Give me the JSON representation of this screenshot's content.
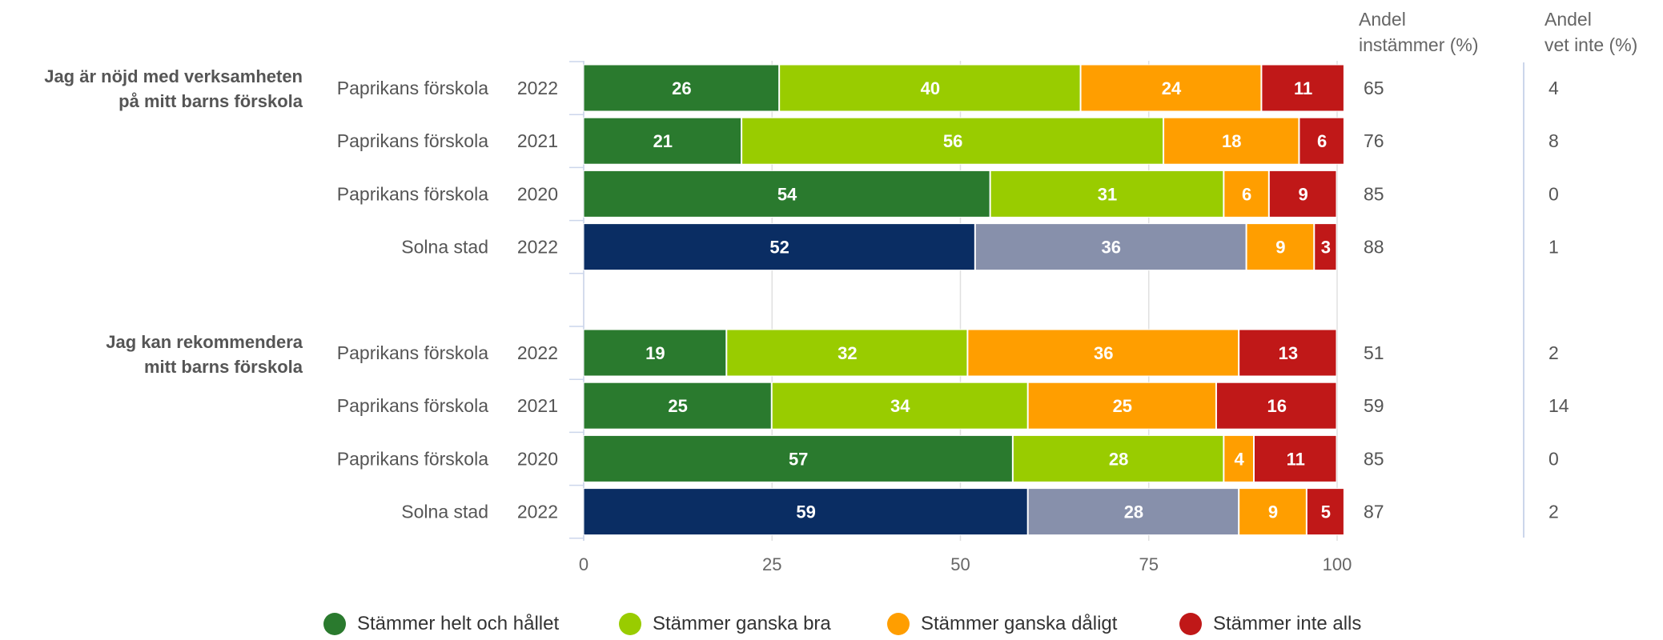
{
  "chart_data": {
    "type": "bar",
    "orientation": "horizontal",
    "stacked": true,
    "xlim": [
      0,
      100
    ],
    "x_ticks": [
      "0",
      "25",
      "50",
      "75",
      "100"
    ],
    "grid": true,
    "legend_position": "bottom",
    "column_headers": [
      {
        "line1": "Andel",
        "line2": "instämmer (%)"
      },
      {
        "line1": "Andel",
        "line2": "vet inte (%)"
      }
    ],
    "series": [
      {
        "name": "Stämmer helt och hållet",
        "color": "#2a7a2e",
        "alt_color": "#0a2d63"
      },
      {
        "name": "Stämmer ganska bra",
        "color": "#99cc00",
        "alt_color": "#8790ab"
      },
      {
        "name": "Stämmer ganska dåligt",
        "color": "#ff9e00",
        "alt_color": "#ff9e00"
      },
      {
        "name": "Stämmer inte alls",
        "color": "#c01818",
        "alt_color": "#c01818"
      }
    ],
    "groups": [
      {
        "question": "Jag är nöjd med verksamheten på mitt barns förskola",
        "question_lines": [
          "Jag är nöjd med verksamheten",
          "på mitt barns förskola"
        ],
        "rows": [
          {
            "unit": "Paprikans förskola",
            "year": "2022",
            "values": [
              26,
              40,
              24,
              11
            ],
            "agree": "65",
            "dont_know": "4",
            "benchmark": false
          },
          {
            "unit": "Paprikans förskola",
            "year": "2021",
            "values": [
              21,
              56,
              18,
              6
            ],
            "agree": "76",
            "dont_know": "8",
            "benchmark": false
          },
          {
            "unit": "Paprikans förskola",
            "year": "2020",
            "values": [
              54,
              31,
              6,
              9
            ],
            "agree": "85",
            "dont_know": "0",
            "benchmark": false
          },
          {
            "unit": "Solna stad",
            "year": "2022",
            "values": [
              52,
              36,
              9,
              3
            ],
            "agree": "88",
            "dont_know": "1",
            "benchmark": true
          }
        ]
      },
      {
        "question": "Jag kan rekommendera mitt barns förskola",
        "question_lines": [
          "Jag kan rekommendera",
          "mitt barns förskola"
        ],
        "rows": [
          {
            "unit": "Paprikans förskola",
            "year": "2022",
            "values": [
              19,
              32,
              36,
              13
            ],
            "agree": "51",
            "dont_know": "2",
            "benchmark": false
          },
          {
            "unit": "Paprikans förskola",
            "year": "2021",
            "values": [
              25,
              34,
              25,
              16
            ],
            "agree": "59",
            "dont_know": "14",
            "benchmark": false
          },
          {
            "unit": "Paprikans förskola",
            "year": "2020",
            "values": [
              57,
              28,
              4,
              11
            ],
            "agree": "85",
            "dont_know": "0",
            "benchmark": false
          },
          {
            "unit": "Solna stad",
            "year": "2022",
            "values": [
              59,
              28,
              9,
              5
            ],
            "agree": "87",
            "dont_know": "2",
            "benchmark": true
          }
        ]
      }
    ]
  }
}
